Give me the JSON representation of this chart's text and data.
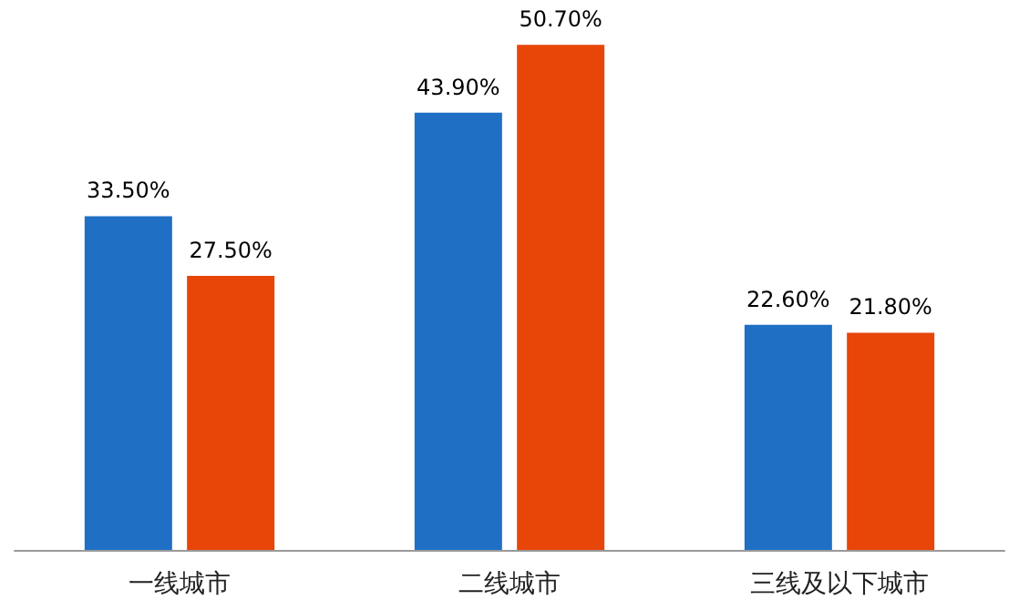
{
  "chart_data": {
    "type": "bar",
    "categories": [
      "一线城市",
      "二线城市",
      "三线及以下城市"
    ],
    "series": [
      {
        "color": "#1f6fc5",
        "values": [
          33.5,
          43.9,
          22.6
        ],
        "value_labels": [
          "33.50%",
          "43.90%",
          "22.60%"
        ]
      },
      {
        "color": "#e84508",
        "values": [
          27.5,
          50.7,
          21.8
        ],
        "value_labels": [
          "27.50%",
          "50.70%",
          "21.80%"
        ]
      }
    ]
  }
}
